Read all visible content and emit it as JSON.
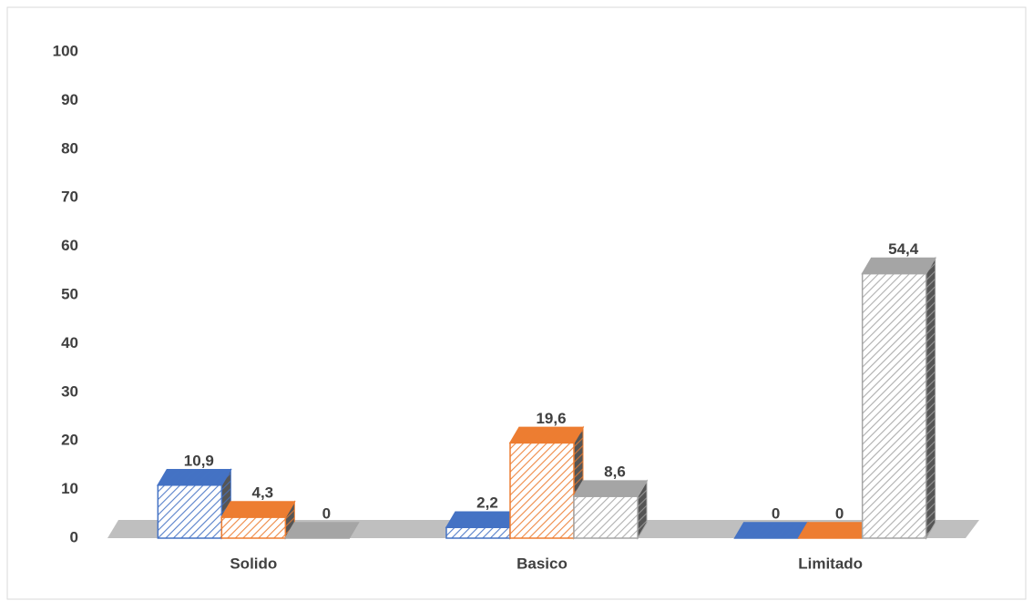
{
  "chart_data": {
    "type": "bar3d",
    "categories": [
      "Solido",
      "Basico",
      "Limitado"
    ],
    "series": [
      {
        "color": "#4472c4",
        "values": [
          10.9,
          2.2,
          0
        ],
        "value_labels": [
          "10,9",
          "2,2",
          "0"
        ]
      },
      {
        "color": "#ed7d31",
        "values": [
          4.3,
          19.6,
          0
        ],
        "value_labels": [
          "4,3",
          "19,6",
          "0"
        ]
      },
      {
        "color": "#a5a5a5",
        "values": [
          0,
          8.6,
          54.4
        ],
        "value_labels": [
          "0",
          "8,6",
          "54,4"
        ]
      }
    ],
    "ylim": [
      0,
      100
    ],
    "yticks": [
      0,
      10,
      20,
      30,
      40,
      50,
      60,
      70,
      80,
      90,
      100
    ],
    "grid": false
  }
}
